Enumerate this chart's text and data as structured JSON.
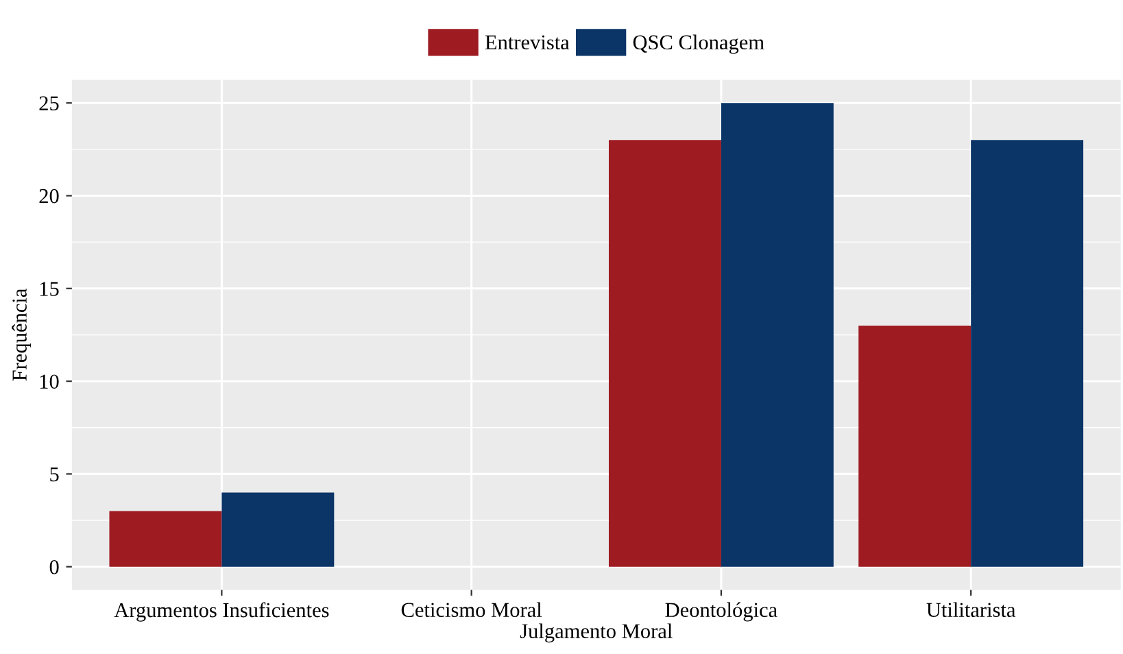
{
  "chart_data": {
    "type": "bar",
    "categories": [
      "Argumentos Insuficientes",
      "Ceticismo Moral",
      "Deontológica",
      "Utilitarista"
    ],
    "series": [
      {
        "name": "Entrevista",
        "color": "#9e1b22",
        "values": [
          3,
          0,
          23,
          13
        ]
      },
      {
        "name": "QSC Clonagem",
        "color": "#0b3467",
        "values": [
          4,
          0,
          25,
          23
        ]
      }
    ],
    "xlabel": "Julgamento Moral",
    "ylabel": "Frequência",
    "ylim": [
      -1.25,
      26.25
    ],
    "yticks": [
      0,
      5,
      10,
      15,
      20,
      25
    ],
    "grid": true,
    "legend": "top"
  }
}
